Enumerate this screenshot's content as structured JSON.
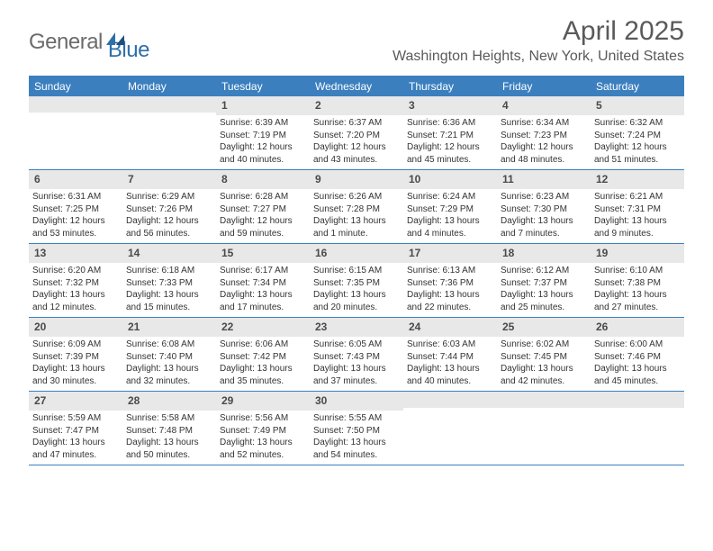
{
  "logo": {
    "text1": "General",
    "text2": "Blue"
  },
  "title": "April 2025",
  "location": "Washington Heights, New York, United States",
  "colors": {
    "header_bg": "#3b7fbf",
    "header_text": "#ffffff",
    "daynum_bg": "#e8e8e8",
    "text": "#333333",
    "logo_gray": "#6b6b6b",
    "logo_blue": "#2f6fa8"
  },
  "weekdays": [
    "Sunday",
    "Monday",
    "Tuesday",
    "Wednesday",
    "Thursday",
    "Friday",
    "Saturday"
  ],
  "weeks": [
    [
      {
        "blank": true
      },
      {
        "blank": true
      },
      {
        "day": "1",
        "sunrise": "Sunrise: 6:39 AM",
        "sunset": "Sunset: 7:19 PM",
        "daylight": "Daylight: 12 hours and 40 minutes."
      },
      {
        "day": "2",
        "sunrise": "Sunrise: 6:37 AM",
        "sunset": "Sunset: 7:20 PM",
        "daylight": "Daylight: 12 hours and 43 minutes."
      },
      {
        "day": "3",
        "sunrise": "Sunrise: 6:36 AM",
        "sunset": "Sunset: 7:21 PM",
        "daylight": "Daylight: 12 hours and 45 minutes."
      },
      {
        "day": "4",
        "sunrise": "Sunrise: 6:34 AM",
        "sunset": "Sunset: 7:23 PM",
        "daylight": "Daylight: 12 hours and 48 minutes."
      },
      {
        "day": "5",
        "sunrise": "Sunrise: 6:32 AM",
        "sunset": "Sunset: 7:24 PM",
        "daylight": "Daylight: 12 hours and 51 minutes."
      }
    ],
    [
      {
        "day": "6",
        "sunrise": "Sunrise: 6:31 AM",
        "sunset": "Sunset: 7:25 PM",
        "daylight": "Daylight: 12 hours and 53 minutes."
      },
      {
        "day": "7",
        "sunrise": "Sunrise: 6:29 AM",
        "sunset": "Sunset: 7:26 PM",
        "daylight": "Daylight: 12 hours and 56 minutes."
      },
      {
        "day": "8",
        "sunrise": "Sunrise: 6:28 AM",
        "sunset": "Sunset: 7:27 PM",
        "daylight": "Daylight: 12 hours and 59 minutes."
      },
      {
        "day": "9",
        "sunrise": "Sunrise: 6:26 AM",
        "sunset": "Sunset: 7:28 PM",
        "daylight": "Daylight: 13 hours and 1 minute."
      },
      {
        "day": "10",
        "sunrise": "Sunrise: 6:24 AM",
        "sunset": "Sunset: 7:29 PM",
        "daylight": "Daylight: 13 hours and 4 minutes."
      },
      {
        "day": "11",
        "sunrise": "Sunrise: 6:23 AM",
        "sunset": "Sunset: 7:30 PM",
        "daylight": "Daylight: 13 hours and 7 minutes."
      },
      {
        "day": "12",
        "sunrise": "Sunrise: 6:21 AM",
        "sunset": "Sunset: 7:31 PM",
        "daylight": "Daylight: 13 hours and 9 minutes."
      }
    ],
    [
      {
        "day": "13",
        "sunrise": "Sunrise: 6:20 AM",
        "sunset": "Sunset: 7:32 PM",
        "daylight": "Daylight: 13 hours and 12 minutes."
      },
      {
        "day": "14",
        "sunrise": "Sunrise: 6:18 AM",
        "sunset": "Sunset: 7:33 PM",
        "daylight": "Daylight: 13 hours and 15 minutes."
      },
      {
        "day": "15",
        "sunrise": "Sunrise: 6:17 AM",
        "sunset": "Sunset: 7:34 PM",
        "daylight": "Daylight: 13 hours and 17 minutes."
      },
      {
        "day": "16",
        "sunrise": "Sunrise: 6:15 AM",
        "sunset": "Sunset: 7:35 PM",
        "daylight": "Daylight: 13 hours and 20 minutes."
      },
      {
        "day": "17",
        "sunrise": "Sunrise: 6:13 AM",
        "sunset": "Sunset: 7:36 PM",
        "daylight": "Daylight: 13 hours and 22 minutes."
      },
      {
        "day": "18",
        "sunrise": "Sunrise: 6:12 AM",
        "sunset": "Sunset: 7:37 PM",
        "daylight": "Daylight: 13 hours and 25 minutes."
      },
      {
        "day": "19",
        "sunrise": "Sunrise: 6:10 AM",
        "sunset": "Sunset: 7:38 PM",
        "daylight": "Daylight: 13 hours and 27 minutes."
      }
    ],
    [
      {
        "day": "20",
        "sunrise": "Sunrise: 6:09 AM",
        "sunset": "Sunset: 7:39 PM",
        "daylight": "Daylight: 13 hours and 30 minutes."
      },
      {
        "day": "21",
        "sunrise": "Sunrise: 6:08 AM",
        "sunset": "Sunset: 7:40 PM",
        "daylight": "Daylight: 13 hours and 32 minutes."
      },
      {
        "day": "22",
        "sunrise": "Sunrise: 6:06 AM",
        "sunset": "Sunset: 7:42 PM",
        "daylight": "Daylight: 13 hours and 35 minutes."
      },
      {
        "day": "23",
        "sunrise": "Sunrise: 6:05 AM",
        "sunset": "Sunset: 7:43 PM",
        "daylight": "Daylight: 13 hours and 37 minutes."
      },
      {
        "day": "24",
        "sunrise": "Sunrise: 6:03 AM",
        "sunset": "Sunset: 7:44 PM",
        "daylight": "Daylight: 13 hours and 40 minutes."
      },
      {
        "day": "25",
        "sunrise": "Sunrise: 6:02 AM",
        "sunset": "Sunset: 7:45 PM",
        "daylight": "Daylight: 13 hours and 42 minutes."
      },
      {
        "day": "26",
        "sunrise": "Sunrise: 6:00 AM",
        "sunset": "Sunset: 7:46 PM",
        "daylight": "Daylight: 13 hours and 45 minutes."
      }
    ],
    [
      {
        "day": "27",
        "sunrise": "Sunrise: 5:59 AM",
        "sunset": "Sunset: 7:47 PM",
        "daylight": "Daylight: 13 hours and 47 minutes."
      },
      {
        "day": "28",
        "sunrise": "Sunrise: 5:58 AM",
        "sunset": "Sunset: 7:48 PM",
        "daylight": "Daylight: 13 hours and 50 minutes."
      },
      {
        "day": "29",
        "sunrise": "Sunrise: 5:56 AM",
        "sunset": "Sunset: 7:49 PM",
        "daylight": "Daylight: 13 hours and 52 minutes."
      },
      {
        "day": "30",
        "sunrise": "Sunrise: 5:55 AM",
        "sunset": "Sunset: 7:50 PM",
        "daylight": "Daylight: 13 hours and 54 minutes."
      },
      {
        "blank": true
      },
      {
        "blank": true
      },
      {
        "blank": true
      }
    ]
  ]
}
